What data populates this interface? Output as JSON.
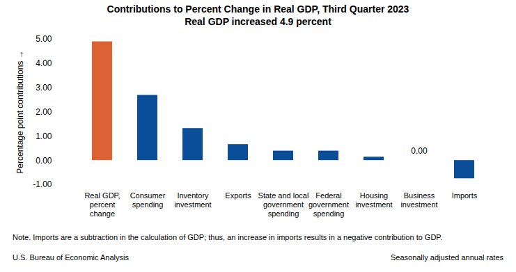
{
  "chart_data": {
    "type": "bar",
    "title": "Contributions to Percent Change in Real GDP, Third Quarter 2023",
    "subtitle": "Real GDP increased 4.9 percent",
    "y_label": "Percentage point contributions",
    "categories": [
      "Real GDP,\npercent\nchange",
      "Consumer\nspending",
      "Inventory\ninvestment",
      "Exports",
      "State and local\ngovernment\nspending",
      "Federal\ngovernment\nspending",
      "Housing\ninvestment",
      "Business\ninvestment",
      "Imports"
    ],
    "values": [
      4.9,
      2.69,
      1.32,
      0.66,
      0.39,
      0.39,
      0.14,
      0.0,
      -0.75
    ],
    "value_labels": [
      null,
      null,
      null,
      null,
      null,
      null,
      null,
      "0.00",
      null
    ],
    "colors": [
      "#dc6236",
      "#0a4d98",
      "#0a4d98",
      "#0a4d98",
      "#0a4d98",
      "#0a4d98",
      "#0a4d98",
      "#0a4d98",
      "#0a4d98"
    ],
    "ylim": [
      -1,
      5
    ],
    "yticks": [
      {
        "value": -1,
        "label": "-1.00"
      },
      {
        "value": 0,
        "label": "0.00"
      },
      {
        "value": 1,
        "label": "1.00"
      },
      {
        "value": 2,
        "label": "2.00"
      },
      {
        "value": 3,
        "label": "3.00"
      },
      {
        "value": 4,
        "label": "4.00"
      },
      {
        "value": 5,
        "label": "5.00"
      }
    ],
    "grid": false,
    "note": "Note. Imports are a subtraction in the calculation of GDP; thus, an increase in imports results in a negative contribution to GDP.",
    "source": "U.S. Bureau of Economic Analysis",
    "footer": "Seasonally adjusted annual rates"
  }
}
